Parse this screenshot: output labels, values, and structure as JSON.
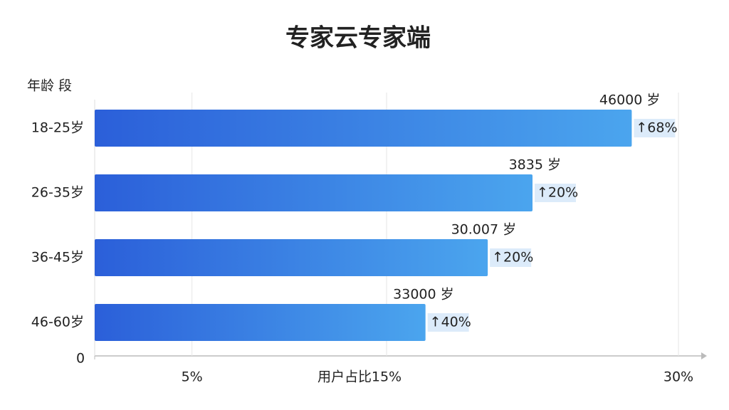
{
  "chart_data": {
    "type": "hbar",
    "title": "专家云专家端",
    "y_label": "年龄 段",
    "x_label": "用户占比",
    "categories": [
      "18-25岁",
      "26-35岁",
      "36-45岁",
      "46-60岁"
    ],
    "values": [
      27.6,
      22.5,
      20.2,
      17.0
    ],
    "annotations": [
      {
        "count": "46000 岁",
        "change": "↑68%"
      },
      {
        "count": "3835 岁",
        "change": "↑20%"
      },
      {
        "count": "30.007 岁",
        "change": "↑20%"
      },
      {
        "count": "33000 岁",
        "change": "↑40%"
      }
    ],
    "colors": [
      "#2b5fd9",
      "#4ba5ee"
    ],
    "xlim": [
      0,
      30
    ],
    "xticks": [
      0,
      {
        "value": 5,
        "label": "5%"
      },
      {
        "value": 15,
        "label": "15%"
      },
      {
        "value": 30,
        "label": "30%"
      }
    ],
    "grid": true
  }
}
